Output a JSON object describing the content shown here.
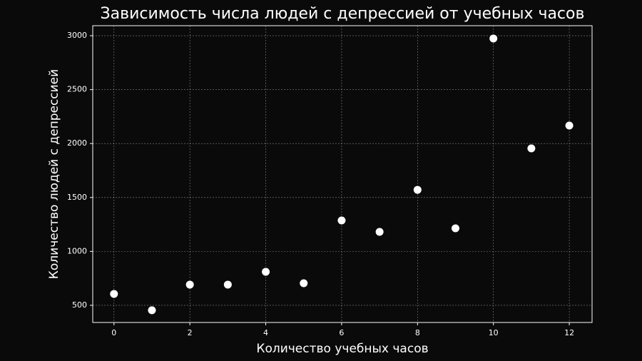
{
  "chart_data": {
    "type": "scatter",
    "title": "Зависимость числа людей с депрессией от учебных часов",
    "x_label": "Количество учебных часов",
    "y_label": "Количество людей с депрессией",
    "x": [
      0,
      1,
      2,
      3,
      4,
      5,
      6,
      7,
      8,
      9,
      10,
      11,
      12
    ],
    "values": [
      606,
      454,
      692,
      692,
      811,
      705,
      1287,
      1181,
      1571,
      1214,
      2974,
      1955,
      2167
    ],
    "color": "#ffffff",
    "xlim": [
      -0.56,
      12.6
    ],
    "ylim": [
      341,
      3093
    ],
    "xticks": [
      0,
      2,
      4,
      6,
      8,
      10,
      12
    ],
    "yticks": [
      500,
      1000,
      1500,
      2000,
      2500,
      3000
    ],
    "grid": true
  }
}
